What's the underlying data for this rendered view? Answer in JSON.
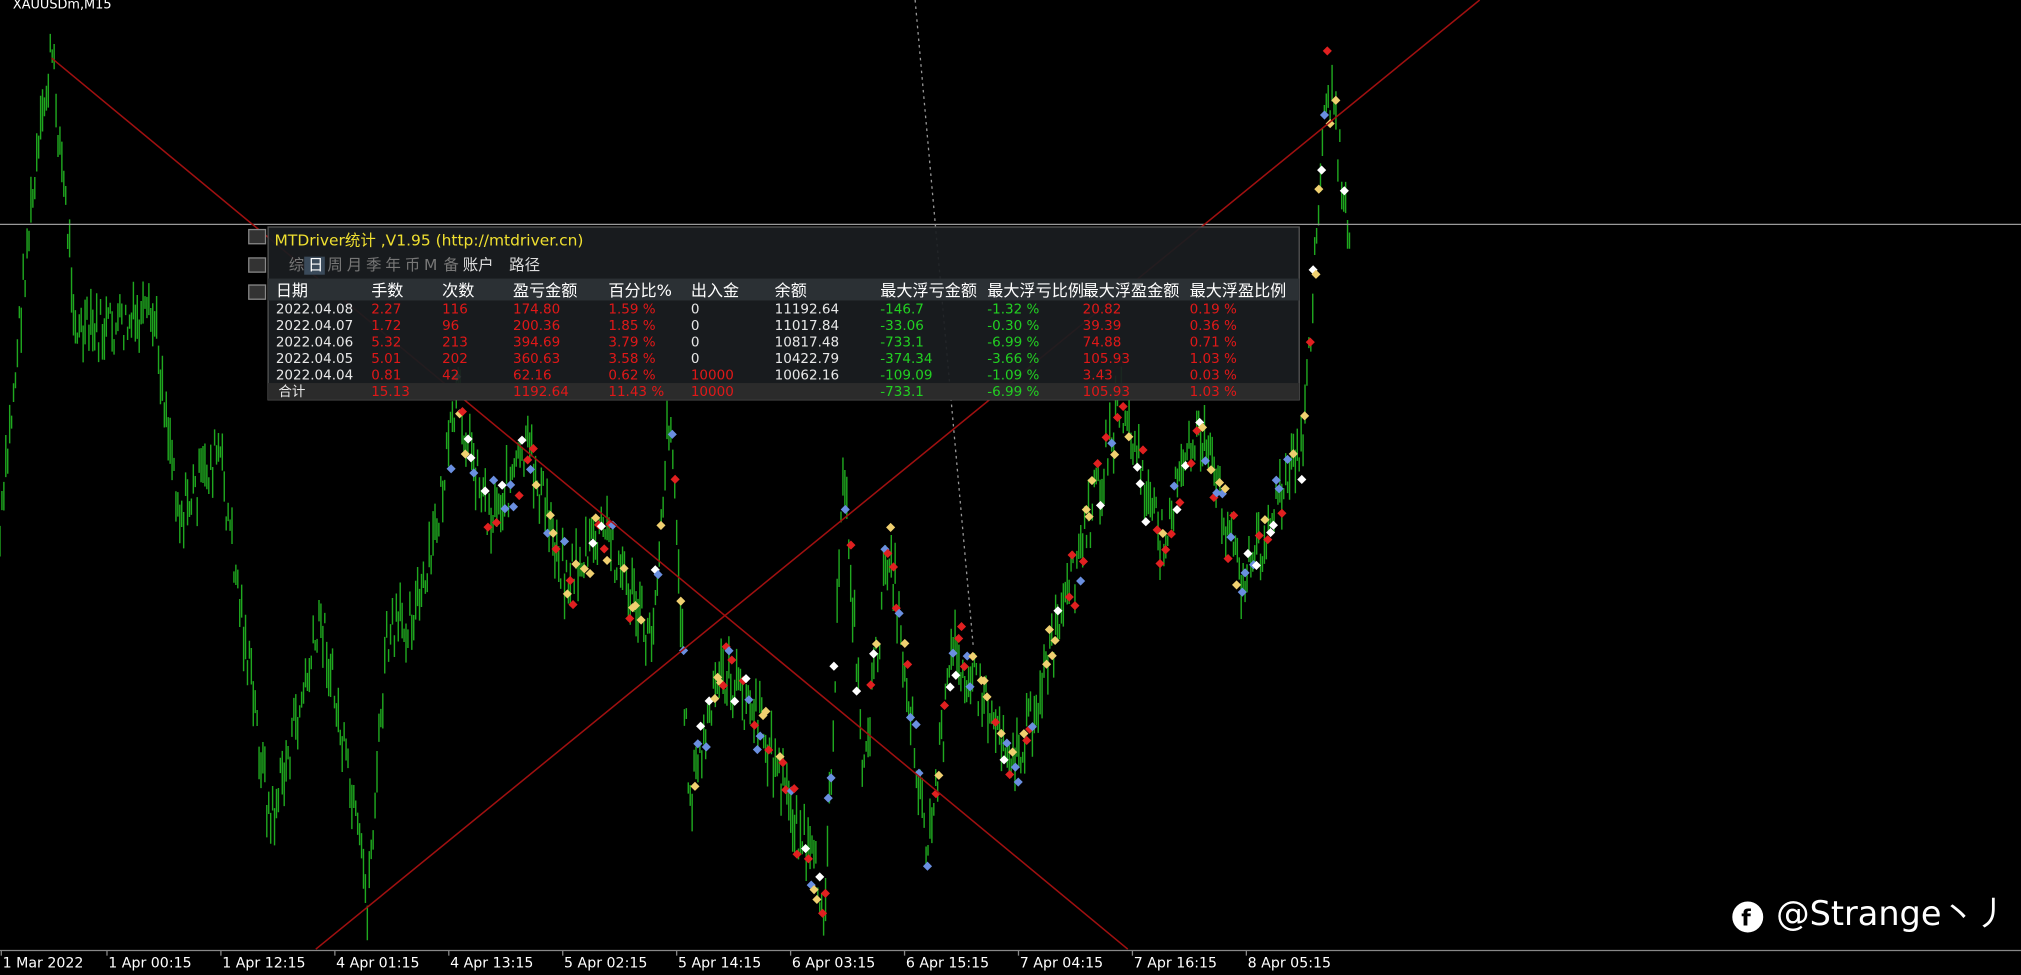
{
  "symbol": "XAUUSDm,M15",
  "x_axis": [
    "1 Mar 2022",
    "1 Apr 00:15",
    "1 Apr 12:15",
    "4 Apr 01:15",
    "4 Apr 13:15",
    "5 Apr 02:15",
    "5 Apr 14:15",
    "6 Apr 03:15",
    "6 Apr 15:15",
    "7 Apr 04:15",
    "7 Apr 16:15",
    "8 Apr 05:15"
  ],
  "panel": {
    "title": "MTDriver统计 ,V1.95 (http://mtdriver.cn)",
    "tabs": [
      "综",
      "日",
      "周",
      "月",
      "季",
      "年",
      "币",
      "M",
      "备",
      "账户",
      "路径"
    ],
    "columns": [
      "日期",
      "手数",
      "次数",
      "盈亏金额",
      "百分比%",
      "出入金",
      "余额",
      "最大浮亏金额",
      "最大浮亏比例",
      "最大浮盈金额",
      "最大浮盈比例"
    ],
    "rows": [
      [
        "2022.04.08",
        "2.27",
        "116",
        "174.80",
        "1.59 %",
        "0",
        "11192.64",
        "-146.7",
        "-1.32 %",
        "20.82",
        "0.19 %"
      ],
      [
        "2022.04.07",
        "1.72",
        "96",
        "200.36",
        "1.85 %",
        "0",
        "11017.84",
        "-33.06",
        "-0.30 %",
        "39.39",
        "0.36 %"
      ],
      [
        "2022.04.06",
        "5.32",
        "213",
        "394.69",
        "3.79 %",
        "0",
        "10817.48",
        "-733.1",
        "-6.99 %",
        "74.88",
        "0.71 %"
      ],
      [
        "2022.04.05",
        "5.01",
        "202",
        "360.63",
        "3.58 %",
        "0",
        "10422.79",
        "-374.34",
        "-3.66 %",
        "105.93",
        "1.03 %"
      ],
      [
        "2022.04.04",
        "0.81",
        "42",
        "62.16",
        "0.62 %",
        "10000",
        "10062.16",
        "-109.09",
        "-1.09 %",
        "3.43",
        "0.03 %"
      ]
    ],
    "total": [
      "合计",
      "15.13",
      null,
      "1192.64",
      "11.43 %",
      "10000",
      null,
      "-733.1",
      "-6.99 %",
      "105.93",
      "1.03 %"
    ]
  },
  "watermark": "@Strange丶丿"
}
